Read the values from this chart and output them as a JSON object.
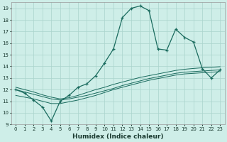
{
  "xlabel": "Humidex (Indice chaleur)",
  "ylabel": "",
  "bg_color": "#ceeee8",
  "grid_color": "#aad4cc",
  "line_color": "#1a6b5e",
  "xlim": [
    -0.5,
    23.5
  ],
  "ylim": [
    9,
    19.5
  ],
  "yticks": [
    9,
    10,
    11,
    12,
    13,
    14,
    15,
    16,
    17,
    18,
    19
  ],
  "xticks": [
    0,
    1,
    2,
    3,
    4,
    5,
    6,
    7,
    8,
    9,
    10,
    11,
    12,
    13,
    14,
    15,
    16,
    17,
    18,
    19,
    20,
    21,
    22,
    23
  ],
  "series": {
    "main": [
      12.0,
      11.7,
      11.1,
      10.5,
      9.3,
      11.0,
      11.5,
      12.2,
      12.5,
      13.2,
      14.3,
      15.5,
      18.2,
      19.0,
      19.2,
      18.8,
      15.5,
      15.4,
      17.2,
      16.5,
      16.1,
      13.8,
      13.0,
      13.7
    ],
    "reg1": [
      12.0,
      11.8,
      11.6,
      11.4,
      11.2,
      11.1,
      11.2,
      11.35,
      11.5,
      11.7,
      11.9,
      12.1,
      12.35,
      12.55,
      12.75,
      12.95,
      13.1,
      13.25,
      13.4,
      13.5,
      13.55,
      13.6,
      13.65,
      13.7
    ],
    "reg2": [
      11.5,
      11.35,
      11.2,
      11.0,
      10.8,
      10.8,
      10.95,
      11.1,
      11.3,
      11.5,
      11.75,
      12.0,
      12.2,
      12.4,
      12.6,
      12.8,
      12.95,
      13.1,
      13.25,
      13.35,
      13.4,
      13.45,
      13.5,
      13.55
    ],
    "reg3": [
      12.2,
      12.0,
      11.8,
      11.55,
      11.35,
      11.2,
      11.3,
      11.5,
      11.75,
      12.0,
      12.2,
      12.45,
      12.65,
      12.85,
      13.05,
      13.2,
      13.35,
      13.5,
      13.65,
      13.75,
      13.82,
      13.88,
      13.92,
      13.97
    ]
  }
}
